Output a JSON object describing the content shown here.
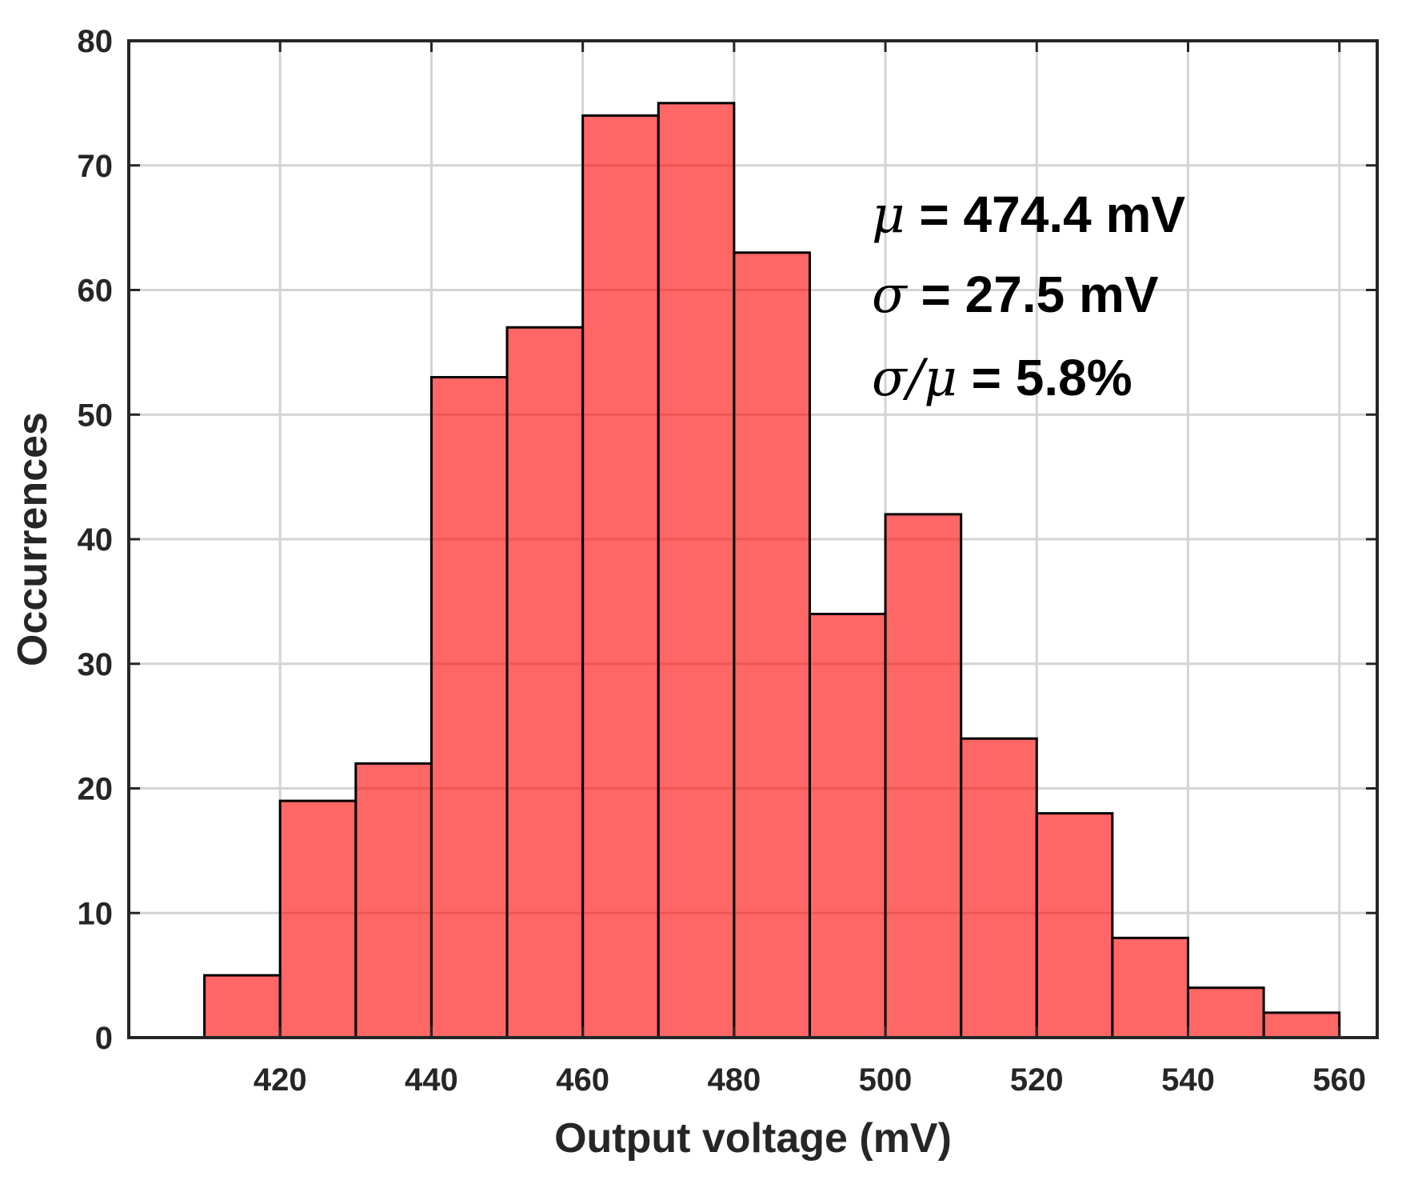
{
  "chart_data": {
    "type": "bar",
    "subtype": "histogram",
    "bin_edges": [
      410,
      420,
      430,
      440,
      450,
      460,
      470,
      480,
      490,
      500,
      510,
      520,
      530,
      540,
      550,
      560
    ],
    "values": [
      5,
      19,
      22,
      53,
      57,
      74,
      75,
      63,
      34,
      42,
      24,
      18,
      8,
      4,
      2
    ],
    "xlabel": "Output voltage (mV)",
    "ylabel": "Occurrences",
    "xlim": [
      400,
      565
    ],
    "ylim": [
      0,
      80
    ],
    "xticks": [
      420,
      440,
      460,
      480,
      500,
      520,
      540,
      560
    ],
    "yticks": [
      0,
      10,
      20,
      30,
      40,
      50,
      60,
      70,
      80
    ],
    "grid": true,
    "bar_color": "#ff0000",
    "annotations": [
      {
        "symbol": "μ",
        "text": " = 474.4 mV"
      },
      {
        "symbol": "σ",
        "text": " = 27.5 mV"
      },
      {
        "symbol": "σ/μ",
        "text": " = 5.8%"
      }
    ]
  }
}
